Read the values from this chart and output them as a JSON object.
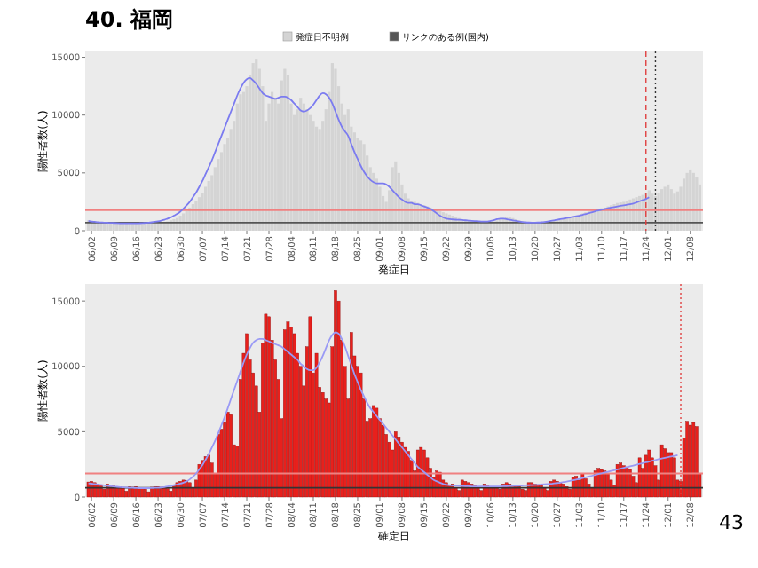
{
  "chart_data": [
    {
      "type": "bar",
      "title": "40. 福岡",
      "xlabel": "発症日",
      "ylabel": "陽性者数(人)",
      "legend": "top",
      "grid": false,
      "x": [
        "--06-01",
        "--06-02",
        "--06-03",
        "--06-04",
        "--06-05",
        "--06-06",
        "--06-07",
        "--06-08",
        "--06-09",
        "--06-10",
        "--06-11",
        "--06-12",
        "--06-13",
        "--06-14",
        "--06-15",
        "--06-16",
        "--06-17",
        "--06-18",
        "--06-19",
        "--06-20",
        "--06-21",
        "--06-22",
        "--06-23",
        "--06-24",
        "--06-25",
        "--06-26",
        "--06-27",
        "--06-28",
        "--06-29",
        "--06-30",
        "--07-01",
        "--07-02",
        "--07-03",
        "--07-04",
        "--07-05",
        "--07-06",
        "--07-07",
        "--07-08",
        "--07-09",
        "--07-10",
        "--07-11",
        "--07-12",
        "--07-13",
        "--07-14",
        "--07-15",
        "--07-16",
        "--07-17",
        "--07-18",
        "--07-19",
        "--07-20",
        "--07-21",
        "--07-22",
        "--07-23",
        "--07-24",
        "--07-25",
        "--07-26",
        "--07-27",
        "--07-28",
        "--07-29",
        "--07-30",
        "--07-31",
        "--08-01",
        "--08-02",
        "--08-03",
        "--08-04",
        "--08-05",
        "--08-06",
        "--08-07",
        "--08-08",
        "--08-09",
        "--08-10",
        "--08-11",
        "--08-12",
        "--08-13",
        "--08-14",
        "--08-15",
        "--08-16",
        "--08-17",
        "--08-18",
        "--08-19",
        "--08-20",
        "--08-21",
        "--08-22",
        "--08-23",
        "--08-24",
        "--08-25",
        "--08-26",
        "--08-27",
        "--08-28",
        "--08-29",
        "--08-30",
        "--08-31",
        "--09-01",
        "--09-02",
        "--09-03",
        "--09-04",
        "--09-05",
        "--09-06",
        "--09-07",
        "--09-08",
        "--09-09",
        "--09-10",
        "--09-11",
        "--09-12",
        "--09-13",
        "--09-14",
        "--09-15",
        "--09-16",
        "--09-17",
        "--09-18",
        "--09-19",
        "--09-20",
        "--09-21",
        "--09-22",
        "--09-23",
        "--09-24",
        "--09-25",
        "--09-26",
        "--09-27",
        "--09-28",
        "--09-29",
        "--09-30",
        "--10-01",
        "--10-02",
        "--10-03",
        "--10-04",
        "--10-05",
        "--10-06",
        "--10-07",
        "--10-08",
        "--10-09",
        "--10-10",
        "--10-11",
        "--10-12",
        "--10-13",
        "--10-14",
        "--10-15",
        "--10-16",
        "--10-17",
        "--10-18",
        "--10-19",
        "--10-20",
        "--10-21",
        "--10-22",
        "--10-23",
        "--10-24",
        "--10-25",
        "--10-26",
        "--10-27",
        "--10-28",
        "--10-29",
        "--10-30",
        "--10-31",
        "--11-01",
        "--11-02",
        "--11-03",
        "--11-04",
        "--11-05",
        "--11-06",
        "--11-07",
        "--11-08",
        "--11-09",
        "--11-10",
        "--11-11",
        "--11-12",
        "--11-13",
        "--11-14",
        "--11-15",
        "--11-16",
        "--11-17",
        "--11-18",
        "--11-19",
        "--11-20",
        "--11-21",
        "--11-22",
        "--11-23",
        "--11-24",
        "--11-25",
        "--11-26",
        "--11-27",
        "--11-28",
        "--11-29",
        "--11-30",
        "--12-01",
        "--12-02",
        "--12-03",
        "--12-04",
        "--12-05",
        "--12-06",
        "--12-07",
        "--12-08",
        "--12-09",
        "--12-10",
        "--12-11"
      ],
      "xlim": [
        "--05-31",
        "--12-12"
      ],
      "xticks": [
        {
          "value": "--06-02",
          "label": "06/02"
        },
        {
          "value": "--06-09",
          "label": "06/09"
        },
        {
          "value": "--06-16",
          "label": "06/16"
        },
        {
          "value": "--06-23",
          "label": "06/23"
        },
        {
          "value": "--06-30",
          "label": "06/30"
        },
        {
          "value": "--07-07",
          "label": "07/07"
        },
        {
          "value": "--07-14",
          "label": "07/14"
        },
        {
          "value": "--07-21",
          "label": "07/21"
        },
        {
          "value": "--07-28",
          "label": "07/28"
        },
        {
          "value": "--08-04",
          "label": "08/04"
        },
        {
          "value": "--08-11",
          "label": "08/11"
        },
        {
          "value": "--08-18",
          "label": "08/18"
        },
        {
          "value": "--08-25",
          "label": "08/25"
        },
        {
          "value": "--09-01",
          "label": "09/01"
        },
        {
          "value": "--09-08",
          "label": "09/08"
        },
        {
          "value": "--09-15",
          "label": "09/15"
        },
        {
          "value": "--09-22",
          "label": "09/22"
        },
        {
          "value": "--09-29",
          "label": "09/29"
        },
        {
          "value": "--10-06",
          "label": "10/06"
        },
        {
          "value": "--10-13",
          "label": "10/13"
        },
        {
          "value": "--10-20",
          "label": "10/20"
        },
        {
          "value": "--10-27",
          "label": "10/27"
        },
        {
          "value": "--11-03",
          "label": "11/03"
        },
        {
          "value": "--11-10",
          "label": "11/10"
        },
        {
          "value": "--11-17",
          "label": "11/17"
        },
        {
          "value": "--11-24",
          "label": "11/24"
        },
        {
          "value": "--12-01",
          "label": "12/01"
        },
        {
          "value": "--12-08",
          "label": "12/08"
        }
      ],
      "ylim": [
        0,
        15500
      ],
      "yticks": [
        0,
        5000,
        10000,
        15000
      ],
      "series": [
        {
          "name": "発症日不明例",
          "type": "bar",
          "color": "#d4d4d4",
          "values": [
            900,
            850,
            800,
            780,
            700,
            750,
            720,
            700,
            680,
            650,
            640,
            600,
            620,
            600,
            600,
            620,
            580,
            600,
            620,
            650,
            640,
            650,
            700,
            720,
            750,
            800,
            900,
            1000,
            1100,
            1300,
            1500,
            1700,
            2000,
            2300,
            2600,
            2900,
            3300,
            3800,
            4300,
            4800,
            5500,
            6200,
            6800,
            7500,
            8000,
            8800,
            9500,
            11000,
            11800,
            12000,
            12500,
            13500,
            14500,
            14800,
            14000,
            12500,
            9500,
            11000,
            12000,
            11500,
            11000,
            13000,
            14000,
            13500,
            11000,
            10000,
            10500,
            11500,
            11000,
            10500,
            10000,
            9500,
            9000,
            8800,
            9500,
            10500,
            12000,
            14500,
            14000,
            12500,
            11000,
            10000,
            10500,
            9000,
            8500,
            8000,
            7800,
            7500,
            6500,
            5500,
            5000,
            4500,
            3800,
            3000,
            2500,
            3500,
            5500,
            6000,
            5000,
            4000,
            3200,
            2800,
            2600,
            2500,
            2400,
            2300,
            2200,
            2100,
            2000,
            1900,
            1800,
            1700,
            1600,
            1500,
            1400,
            1300,
            1200,
            1100,
            1000,
            950,
            900,
            880,
            850,
            820,
            800,
            780,
            760,
            740,
            800,
            900,
            1000,
            1100,
            1150,
            1150,
            1100,
            1000,
            900,
            800,
            750,
            700,
            680,
            650,
            650,
            680,
            700,
            750,
            800,
            850,
            900,
            950,
            1000,
            1050,
            1100,
            1200,
            1300,
            1400,
            1500,
            1600,
            1700,
            1800,
            1850,
            1900,
            1950,
            2000,
            2100,
            2200,
            2300,
            2400,
            2450,
            2500,
            2600,
            2700,
            2800,
            2900,
            3000,
            3100,
            3300,
            3500,
            3200,
            3000,
            3300,
            3600,
            3800,
            4000,
            3600,
            3200,
            3400,
            3800,
            4500,
            5000,
            5300,
            5000,
            4600,
            4000
          ]
        },
        {
          "name": "リンクのある例(国内)",
          "type": "bar",
          "color": "#555555",
          "values": [
            null,
            null,
            null,
            null,
            null,
            null,
            null,
            null,
            null,
            null,
            null,
            null,
            null,
            null,
            null,
            null,
            null,
            null,
            null,
            null,
            null,
            null,
            null,
            null,
            null,
            null,
            null,
            null,
            null,
            null,
            null,
            null,
            null,
            null,
            null,
            null,
            null,
            null,
            null,
            null,
            null,
            null,
            null,
            null,
            null,
            null,
            null,
            null,
            null,
            null,
            null,
            null,
            null,
            null,
            null,
            null,
            null,
            null,
            null,
            null,
            null,
            null,
            null,
            null,
            null,
            null,
            null,
            null,
            null,
            null,
            null,
            null,
            null,
            null,
            null,
            null,
            null,
            null,
            null,
            null,
            null,
            null,
            null,
            null,
            null,
            null,
            null,
            null,
            null,
            null,
            null,
            null,
            null,
            null,
            null,
            null,
            null,
            null,
            null,
            null,
            null,
            null,
            null,
            null,
            null,
            null,
            null,
            null,
            null,
            null,
            null,
            null,
            null,
            null,
            null,
            null,
            null,
            null,
            null,
            null,
            null,
            null,
            null,
            null,
            null,
            null,
            null,
            null,
            null,
            null,
            null,
            null,
            null,
            null,
            null,
            null,
            null,
            null,
            null,
            null,
            null,
            null,
            null,
            null,
            null,
            null,
            null,
            null,
            null,
            null,
            null,
            null,
            null,
            null,
            null,
            null,
            null,
            null,
            null,
            null,
            null,
            null,
            null,
            null,
            null,
            null,
            null,
            null,
            null,
            null,
            null,
            null,
            null,
            null,
            null,
            null,
            null,
            null,
            null,
            null,
            null,
            null,
            null,
            null,
            null,
            null,
            null,
            null,
            null,
            null,
            null,
            null,
            null,
            null
          ]
        },
        {
          "type": "line",
          "color": "#7b7bf0",
          "values": [
            850,
            800,
            770,
            740,
            720,
            700,
            690,
            680,
            670,
            660,
            650,
            640,
            640,
            640,
            640,
            640,
            650,
            660,
            680,
            700,
            730,
            770,
            820,
            880,
            950,
            1050,
            1150,
            1300,
            1450,
            1650,
            1900,
            2200,
            2500,
            2900,
            3300,
            3800,
            4300,
            4900,
            5500,
            6100,
            6800,
            7500,
            8200,
            8900,
            9600,
            10300,
            11000,
            11700,
            12300,
            12800,
            13100,
            13200,
            13000,
            12700,
            12300,
            11900,
            11700,
            11600,
            11500,
            11400,
            11500,
            11600,
            11600,
            11500,
            11300,
            11000,
            10700,
            10400,
            10300,
            10400,
            10600,
            10900,
            11300,
            11700,
            11900,
            11800,
            11500,
            11000,
            10300,
            9600,
            9000,
            8600,
            8200,
            7500,
            6800,
            6200,
            5600,
            5100,
            4700,
            4400,
            4200,
            4100,
            4100,
            4100,
            4000,
            3800,
            3500,
            3200,
            2900,
            2700,
            2500,
            2400,
            2400,
            2300,
            2300,
            2200,
            2100,
            2000,
            1900,
            1700,
            1500,
            1300,
            1150,
            1050,
            1000,
            980,
            960,
            950,
            930,
            900,
            880,
            860,
            840,
            820,
            800,
            790,
            800,
            850,
            920,
            1000,
            1050,
            1050,
            1000,
            950,
            900,
            850,
            800,
            760,
            730,
            710,
            700,
            700,
            710,
            730,
            760,
            800,
            850,
            900,
            950,
            1000,
            1050,
            1100,
            1150,
            1200,
            1250,
            1300,
            1380,
            1450,
            1520,
            1600,
            1680,
            1750,
            1820,
            1880,
            1950,
            2000,
            2050,
            2100,
            2150,
            2200,
            2250,
            2300,
            2350,
            2450,
            2550,
            2650,
            2750,
            2900,
            null,
            null,
            null,
            null,
            null,
            null,
            null,
            null,
            null,
            null,
            null,
            null,
            null,
            null,
            null,
            null
          ]
        }
      ],
      "ref_lines": [
        {
          "axis": "y",
          "value": 1800,
          "color": "#f08080",
          "line_style": "solid"
        },
        {
          "axis": "y",
          "value": 700,
          "color": "#555555",
          "line_style": "solid"
        },
        {
          "axis": "x",
          "value": "--11-24",
          "color": "#e04040",
          "line_style": "dashed"
        },
        {
          "axis": "x",
          "value": "--11-27",
          "color": "#333333",
          "line_style": "dotted"
        }
      ]
    },
    {
      "type": "bar",
      "xlabel": "確定日",
      "ylabel": "陽性者数(人)",
      "grid": false,
      "annotations": [
        "43"
      ],
      "x": [
        "--06-01",
        "--06-02",
        "--06-03",
        "--06-04",
        "--06-05",
        "--06-06",
        "--06-07",
        "--06-08",
        "--06-09",
        "--06-10",
        "--06-11",
        "--06-12",
        "--06-13",
        "--06-14",
        "--06-15",
        "--06-16",
        "--06-17",
        "--06-18",
        "--06-19",
        "--06-20",
        "--06-21",
        "--06-22",
        "--06-23",
        "--06-24",
        "--06-25",
        "--06-26",
        "--06-27",
        "--06-28",
        "--06-29",
        "--06-30",
        "--07-01",
        "--07-02",
        "--07-03",
        "--07-04",
        "--07-05",
        "--07-06",
        "--07-07",
        "--07-08",
        "--07-09",
        "--07-10",
        "--07-11",
        "--07-12",
        "--07-13",
        "--07-14",
        "--07-15",
        "--07-16",
        "--07-17",
        "--07-18",
        "--07-19",
        "--07-20",
        "--07-21",
        "--07-22",
        "--07-23",
        "--07-24",
        "--07-25",
        "--07-26",
        "--07-27",
        "--07-28",
        "--07-29",
        "--07-30",
        "--07-31",
        "--08-01",
        "--08-02",
        "--08-03",
        "--08-04",
        "--08-05",
        "--08-06",
        "--08-07",
        "--08-08",
        "--08-09",
        "--08-10",
        "--08-11",
        "--08-12",
        "--08-13",
        "--08-14",
        "--08-15",
        "--08-16",
        "--08-17",
        "--08-18",
        "--08-19",
        "--08-20",
        "--08-21",
        "--08-22",
        "--08-23",
        "--08-24",
        "--08-25",
        "--08-26",
        "--08-27",
        "--08-28",
        "--08-29",
        "--08-30",
        "--08-31",
        "--09-01",
        "--09-02",
        "--09-03",
        "--09-04",
        "--09-05",
        "--09-06",
        "--09-07",
        "--09-08",
        "--09-09",
        "--09-10",
        "--09-11",
        "--09-12",
        "--09-13",
        "--09-14",
        "--09-15",
        "--09-16",
        "--09-17",
        "--09-18",
        "--09-19",
        "--09-20",
        "--09-21",
        "--09-22",
        "--09-23",
        "--09-24",
        "--09-25",
        "--09-26",
        "--09-27",
        "--09-28",
        "--09-29",
        "--09-30",
        "--10-01",
        "--10-02",
        "--10-03",
        "--10-04",
        "--10-05",
        "--10-06",
        "--10-07",
        "--10-08",
        "--10-09",
        "--10-10",
        "--10-11",
        "--10-12",
        "--10-13",
        "--10-14",
        "--10-15",
        "--10-16",
        "--10-17",
        "--10-18",
        "--10-19",
        "--10-20",
        "--10-21",
        "--10-22",
        "--10-23",
        "--10-24",
        "--10-25",
        "--10-26",
        "--10-27",
        "--10-28",
        "--10-29",
        "--10-30",
        "--10-31",
        "--11-01",
        "--11-02",
        "--11-03",
        "--11-04",
        "--11-05",
        "--11-06",
        "--11-07",
        "--11-08",
        "--11-09",
        "--11-10",
        "--11-11",
        "--11-12",
        "--11-13",
        "--11-14",
        "--11-15",
        "--11-16",
        "--11-17",
        "--11-18",
        "--11-19",
        "--11-20",
        "--11-21",
        "--11-22",
        "--11-23",
        "--11-24",
        "--11-25",
        "--11-26",
        "--11-27",
        "--11-28",
        "--11-29",
        "--11-30",
        "--12-01",
        "--12-02",
        "--12-03",
        "--12-04",
        "--12-05",
        "--12-06",
        "--12-07",
        "--12-08",
        "--12-09",
        "--12-10",
        "--12-11"
      ],
      "xlim": [
        "--05-31",
        "--12-12"
      ],
      "xticks": [
        {
          "value": "--06-02",
          "label": "06/02"
        },
        {
          "value": "--06-09",
          "label": "06/09"
        },
        {
          "value": "--06-16",
          "label": "06/16"
        },
        {
          "value": "--06-23",
          "label": "06/23"
        },
        {
          "value": "--06-30",
          "label": "06/30"
        },
        {
          "value": "--07-07",
          "label": "07/07"
        },
        {
          "value": "--07-14",
          "label": "07/14"
        },
        {
          "value": "--07-21",
          "label": "07/21"
        },
        {
          "value": "--07-28",
          "label": "07/28"
        },
        {
          "value": "--08-04",
          "label": "08/04"
        },
        {
          "value": "--08-11",
          "label": "08/11"
        },
        {
          "value": "--08-18",
          "label": "08/18"
        },
        {
          "value": "--08-25",
          "label": "08/25"
        },
        {
          "value": "--09-01",
          "label": "09/01"
        },
        {
          "value": "--09-08",
          "label": "09/08"
        },
        {
          "value": "--09-15",
          "label": "09/15"
        },
        {
          "value": "--09-22",
          "label": "09/22"
        },
        {
          "value": "--09-29",
          "label": "09/29"
        },
        {
          "value": "--10-06",
          "label": "10/06"
        },
        {
          "value": "--10-13",
          "label": "10/13"
        },
        {
          "value": "--10-20",
          "label": "10/20"
        },
        {
          "value": "--10-27",
          "label": "10/27"
        },
        {
          "value": "--11-03",
          "label": "11/03"
        },
        {
          "value": "--11-10",
          "label": "11/10"
        },
        {
          "value": "--11-17",
          "label": "11/17"
        },
        {
          "value": "--11-24",
          "label": "11/24"
        },
        {
          "value": "--12-01",
          "label": "12/01"
        },
        {
          "value": "--12-08",
          "label": "12/08"
        }
      ],
      "ylim": [
        0,
        16300
      ],
      "yticks": [
        0,
        5000,
        10000,
        15000
      ],
      "series": [
        {
          "type": "bar",
          "color": "#e8201c",
          "values": [
            1150,
            1200,
            1100,
            1000,
            900,
            600,
            1000,
            900,
            850,
            800,
            800,
            700,
            450,
            800,
            750,
            800,
            700,
            700,
            600,
            400,
            750,
            800,
            800,
            750,
            750,
            650,
            450,
            850,
            1100,
            1200,
            1300,
            1250,
            1100,
            700,
            1300,
            2500,
            2800,
            3100,
            3200,
            2600,
            1800,
            4800,
            5200,
            5700,
            6500,
            6300,
            4000,
            3900,
            9000,
            11000,
            12500,
            10500,
            9500,
            8500,
            6500,
            11800,
            14000,
            13800,
            12000,
            10500,
            9000,
            6000,
            12800,
            13400,
            13000,
            12500,
            11000,
            10000,
            8500,
            11500,
            13800,
            9500,
            11000,
            8400,
            8000,
            7500,
            7200,
            11500,
            15800,
            15000,
            12000,
            10000,
            7500,
            12600,
            10800,
            10000,
            9500,
            7500,
            5800,
            6000,
            7000,
            6800,
            6000,
            5500,
            4800,
            4200,
            3600,
            5000,
            4600,
            4200,
            3800,
            3500,
            2800,
            2000,
            3600,
            3800,
            3600,
            3000,
            2200,
            1500,
            2000,
            1900,
            1300,
            1100,
            900,
            1000,
            700,
            500,
            1300,
            1200,
            1100,
            1000,
            900,
            700,
            500,
            1000,
            900,
            800,
            750,
            700,
            600,
            1000,
            1100,
            1000,
            900,
            850,
            800,
            600,
            500,
            1100,
            1100,
            1000,
            950,
            900,
            700,
            500,
            1200,
            1300,
            1200,
            1100,
            1000,
            800,
            600,
            1500,
            1600,
            1300,
            1800,
            1400,
            1000,
            700,
            2000,
            2200,
            2100,
            2000,
            1800,
            1300,
            900,
            2500,
            2600,
            2400,
            2300,
            2100,
            1600,
            1100,
            3000,
            2200,
            3200,
            3600,
            3000,
            2400,
            1300,
            4000,
            3700,
            3400,
            3400,
            3000,
            1300,
            1200,
            4500,
            5800,
            5500,
            5700,
            5400,
            1800
          ]
        },
        {
          "type": "line",
          "color": "#9a9af5",
          "values": [
            1050,
            1020,
            990,
            950,
            920,
            890,
            860,
            830,
            800,
            780,
            760,
            740,
            720,
            710,
            700,
            690,
            680,
            680,
            680,
            680,
            690,
            700,
            710,
            730,
            760,
            800,
            850,
            900,
            960,
            1020,
            1100,
            1200,
            1350,
            1550,
            1800,
            2100,
            2450,
            2850,
            3300,
            3800,
            4300,
            4900,
            5500,
            6100,
            6800,
            7500,
            8200,
            8900,
            9600,
            10300,
            10900,
            11400,
            11800,
            12000,
            12100,
            12100,
            12000,
            11900,
            11800,
            11700,
            11600,
            11500,
            11300,
            11100,
            10900,
            10700,
            10500,
            10200,
            10000,
            9800,
            9700,
            9700,
            9900,
            10300,
            10800,
            11400,
            12000,
            12400,
            12600,
            12500,
            12100,
            11500,
            10800,
            10100,
            9400,
            8800,
            8200,
            7700,
            7200,
            6800,
            6500,
            6200,
            5900,
            5600,
            5300,
            5000,
            4700,
            4400,
            4100,
            3800,
            3500,
            3200,
            2900,
            2600,
            2300,
            2100,
            1900,
            1700,
            1500,
            1300,
            1200,
            1100,
            1000,
            950,
            900,
            880,
            860,
            850,
            840,
            830,
            820,
            810,
            800,
            800,
            800,
            800,
            800,
            800,
            800,
            800,
            810,
            820,
            830,
            840,
            850,
            860,
            870,
            880,
            890,
            900,
            910,
            920,
            930,
            950,
            970,
            990,
            1010,
            1040,
            1070,
            1100,
            1140,
            1180,
            1230,
            1280,
            1330,
            1390,
            1450,
            1510,
            1570,
            1630,
            1690,
            1750,
            1810,
            1870,
            1930,
            1990,
            2050,
            2110,
            2170,
            2230,
            2290,
            2350,
            2410,
            2470,
            2530,
            2590,
            2650,
            2710,
            2770,
            2830,
            2890,
            2950,
            3000,
            3050,
            3100,
            3150,
            3200,
            null,
            null,
            null,
            null,
            null,
            null,
            null
          ]
        }
      ],
      "ref_lines": [
        {
          "axis": "y",
          "value": 1800,
          "color": "#f08080",
          "line_style": "solid"
        },
        {
          "axis": "y",
          "value": 700,
          "color": "#333333",
          "line_style": "solid"
        },
        {
          "axis": "x",
          "value": "--12-05",
          "color": "#e04040",
          "line_style": "dotted"
        }
      ]
    }
  ]
}
